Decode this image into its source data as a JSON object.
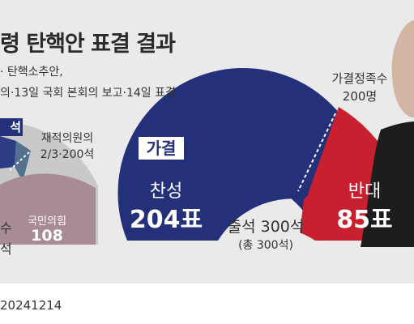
{
  "headline": {
    "title": "령 탄핵안 표결 결과",
    "subtitle_line1": "· 탄핵소추안,",
    "subtitle_line2": "의·13일 국회 본회의 보고·14일 표결"
  },
  "left_chart": {
    "tab_label": "석",
    "two_thirds_line1": "재적의원의",
    "two_thirds_line2": "2/3·200석",
    "party_name": "국민의힘",
    "party_seats": "108",
    "partial_label_top": "수",
    "partial_label_bottom": "석"
  },
  "main_chart": {
    "result_badge": "가결",
    "threshold_label": "가결정족수",
    "threshold_value": "200명",
    "yes_label": "찬성",
    "yes_value": "204표",
    "no_label": "반대",
    "no_value": "85표",
    "attendance_label": "출석 300석",
    "total_label": "(총 300석)"
  },
  "chart_data": {
    "type": "pie",
    "title": "",
    "series": [
      {
        "name": "찬성",
        "value": 204
      },
      {
        "name": "반대",
        "value": 85
      }
    ],
    "attendance": 300,
    "total_seats": 300,
    "threshold": 200
  },
  "colors": {
    "background": "#eaeaea",
    "yes": "#24307a",
    "no": "#c8202e",
    "other": "#c9c9c9",
    "ppp": "#a98b94",
    "badge_border": "#24307a"
  },
  "footer": {
    "text": "20241214"
  }
}
